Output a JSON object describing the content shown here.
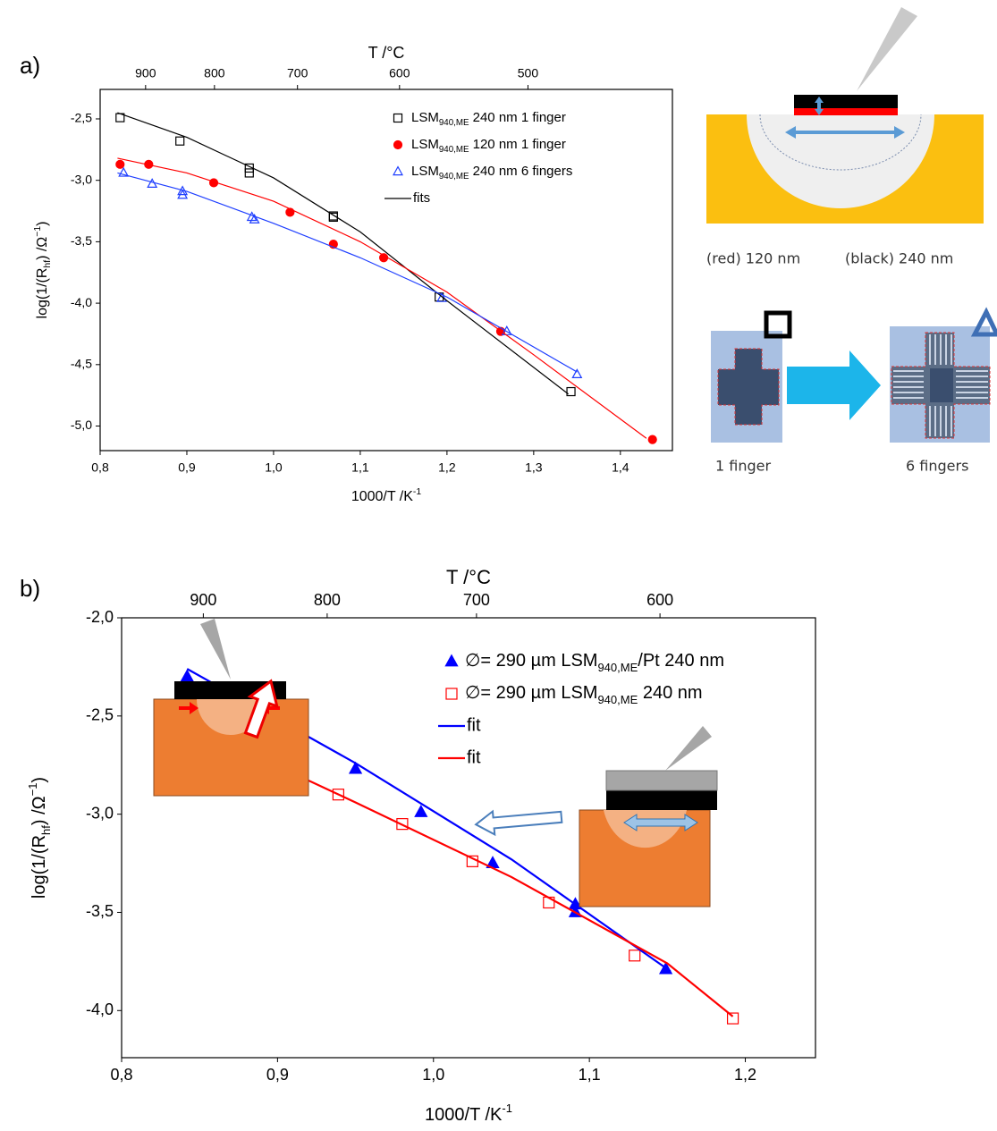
{
  "panel_labels": [
    "a)",
    "b)"
  ],
  "diagram_labels": [
    "(red) 120 nm",
    "(black) 240 nm",
    "1 finger",
    "6 fingers"
  ],
  "chart_data": [
    {
      "type": "scatter",
      "x2label": "T /°C",
      "x2ticks": [
        900,
        800,
        700,
        600,
        500
      ],
      "xlabel": [
        {
          "text": "1000/T /K"
        },
        {
          "text": "-1",
          "shift": "super"
        }
      ],
      "ylabel": [
        {
          "text": "log(1/(R"
        },
        {
          "text": "hf",
          "shift": "sub"
        },
        {
          "text": ") /Ω"
        },
        {
          "text": "−1",
          "shift": "super"
        },
        {
          "text": ")"
        }
      ],
      "xlim": [
        0.8,
        1.46
      ],
      "ylim": [
        -5.2,
        -2.26
      ],
      "xticks": [
        {
          "value": 0.8,
          "label": "0,8"
        },
        {
          "value": 0.9,
          "label": "0,9"
        },
        {
          "value": 1.0,
          "label": "1,0"
        },
        {
          "value": 1.1,
          "label": "1,1"
        },
        {
          "value": 1.2,
          "label": "1,2"
        },
        {
          "value": 1.3,
          "label": "1,3"
        },
        {
          "value": 1.4,
          "label": "1,4"
        }
      ],
      "yticks": [
        {
          "value": -2.5,
          "label": "-2,5"
        },
        {
          "value": -3.0,
          "label": "-3,0"
        },
        {
          "value": -3.5,
          "label": "-3,5"
        },
        {
          "value": -4.0,
          "label": "-4,0"
        },
        {
          "value": -4.5,
          "label": "-4,5"
        },
        {
          "value": -5.0,
          "label": "-5,0"
        }
      ],
      "legend": "upper right",
      "series": [
        {
          "name": [
            {
              "text": "LSM"
            },
            {
              "text": "940,ME",
              "shift": "sub"
            },
            {
              "text": " 240 nm 1 finger"
            }
          ],
          "color": "#000000",
          "marker": "square-open",
          "x": [
            0.823,
            0.892,
            0.972,
            0.972,
            1.069,
            1.069,
            1.191,
            1.343
          ],
          "values": [
            -2.49,
            -2.68,
            -2.9,
            -2.94,
            -3.29,
            -3.3,
            -3.95,
            -4.72
          ]
        },
        {
          "name": [
            {
              "text": "LSM"
            },
            {
              "text": "940,ME",
              "shift": "sub"
            },
            {
              "text": " 120 nm 1 finger"
            }
          ],
          "color": "#ff0000",
          "marker": "circle",
          "x": [
            0.823,
            0.856,
            0.931,
            1.019,
            1.069,
            1.127,
            1.262,
            1.437
          ],
          "values": [
            -2.87,
            -2.87,
            -3.02,
            -3.26,
            -3.52,
            -3.63,
            -4.23,
            -5.11
          ]
        },
        {
          "name": [
            {
              "text": "LSM"
            },
            {
              "text": "940,ME",
              "shift": "sub"
            },
            {
              "text": " 240 nm 6 fingers"
            }
          ],
          "color": "#1f3fff",
          "marker": "triangle-open",
          "x": [
            0.827,
            0.86,
            0.895,
            0.895,
            0.975,
            0.978,
            1.194,
            1.269,
            1.35
          ],
          "values": [
            -2.94,
            -3.03,
            -3.09,
            -3.12,
            -3.3,
            -3.32,
            -3.96,
            -4.23,
            -4.58
          ]
        },
        {
          "name": "fits",
          "color": "#000000",
          "line": true,
          "x": [
            0.82,
            0.9,
            1.0,
            1.1,
            1.2,
            1.34
          ],
          "values": [
            -2.45,
            -2.65,
            -2.98,
            -3.42,
            -3.98,
            -4.74
          ]
        },
        {
          "color": "#ff0000",
          "line": true,
          "x": [
            0.82,
            0.9,
            1.0,
            1.1,
            1.2,
            1.3,
            1.43
          ],
          "values": [
            -2.82,
            -2.94,
            -3.17,
            -3.5,
            -3.91,
            -4.42,
            -5.1
          ]
        },
        {
          "color": "#1f3fff",
          "line": true,
          "x": [
            0.82,
            0.9,
            1.0,
            1.1,
            1.2,
            1.35
          ],
          "values": [
            -2.94,
            -3.09,
            -3.35,
            -3.63,
            -3.95,
            -4.56
          ]
        }
      ]
    },
    {
      "type": "scatter",
      "x2label": "T /°C",
      "x2ticks": [
        900,
        800,
        700,
        600
      ],
      "xlabel": [
        {
          "text": "1000/T /K"
        },
        {
          "text": "-1",
          "shift": "super"
        }
      ],
      "ylabel": [
        {
          "text": "log(1/(R"
        },
        {
          "text": "hf",
          "shift": "sub"
        },
        {
          "text": ") /Ω"
        },
        {
          "text": "−1",
          "shift": "super"
        },
        {
          "text": ")"
        }
      ],
      "xlim": [
        0.8,
        1.245
      ],
      "ylim": [
        -4.24,
        -2.0
      ],
      "xticks": [
        {
          "value": 0.8,
          "label": "0,8"
        },
        {
          "value": 0.9,
          "label": "0,9"
        },
        {
          "value": 1.0,
          "label": "1,0"
        },
        {
          "value": 1.1,
          "label": "1,1"
        },
        {
          "value": 1.2,
          "label": "1,2"
        }
      ],
      "yticks": [
        {
          "value": -2.0,
          "label": "-2,0"
        },
        {
          "value": -2.5,
          "label": "-2,5"
        },
        {
          "value": -3.0,
          "label": "-3,0"
        },
        {
          "value": -3.5,
          "label": "-3,5"
        },
        {
          "value": -4.0,
          "label": "-4,0"
        }
      ],
      "legend": "upper right",
      "series": [
        {
          "name": [
            {
              "text": "∅= 290 µm LSM"
            },
            {
              "text": "940,ME",
              "shift": "sub"
            },
            {
              "text": "/Pt 240 nm"
            }
          ],
          "color": "#0000ff",
          "marker": "triangle",
          "x": [
            0.842,
            0.876,
            0.911,
            0.95,
            0.992,
            1.038,
            1.091,
            1.091,
            1.149
          ],
          "values": [
            -2.3,
            -2.4,
            -2.51,
            -2.77,
            -2.99,
            -3.25,
            -3.46,
            -3.5,
            -3.79
          ]
        },
        {
          "name": [
            {
              "text": "∅= 290 µm LSM"
            },
            {
              "text": "940,ME",
              "shift": "sub"
            },
            {
              "text": " 240 nm"
            }
          ],
          "color": "#ff0000",
          "marker": "square-open",
          "x": [
            0.869,
            0.902,
            0.939,
            0.98,
            1.025,
            1.074,
            1.129,
            1.192
          ],
          "values": [
            -2.65,
            -2.77,
            -2.9,
            -3.05,
            -3.24,
            -3.45,
            -3.72,
            -4.04
          ]
        },
        {
          "name": "fit",
          "color": "#0000ff",
          "line": true,
          "x": [
            0.842,
            0.95,
            1.05,
            1.152
          ],
          "values": [
            -2.26,
            -2.74,
            -3.23,
            -3.8
          ]
        },
        {
          "name": "fit",
          "color": "#ff0000",
          "line": true,
          "x": [
            0.869,
            0.95,
            1.05,
            1.15,
            1.192
          ],
          "values": [
            -2.64,
            -2.94,
            -3.32,
            -3.76,
            -4.03
          ]
        }
      ]
    }
  ]
}
